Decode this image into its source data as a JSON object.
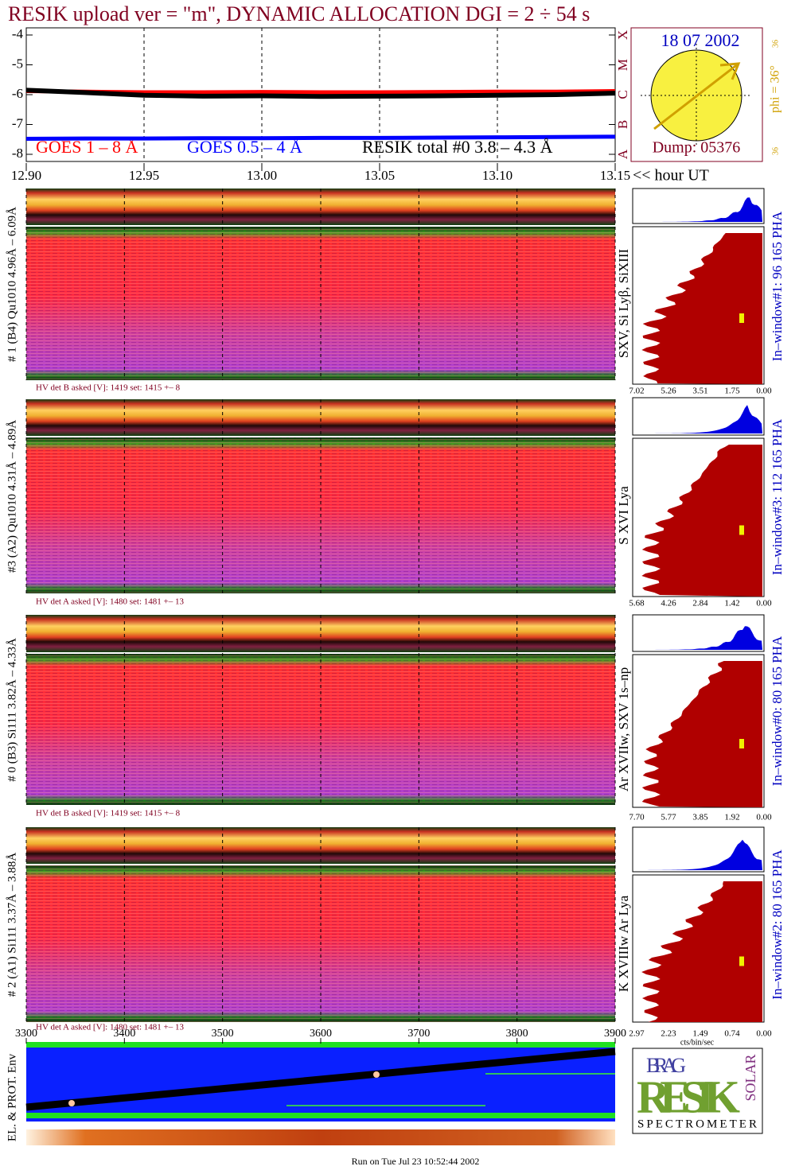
{
  "title": "RESIK upload ver = \"m\", DYNAMIC ALLOCATION  DGI =   2 ÷  54 s",
  "chart_data": {
    "type": "line",
    "xlim": [
      12.9,
      13.15
    ],
    "xticks": [
      {
        "value": 12.9,
        "label": "12.90"
      },
      12.95,
      {
        "value": 13,
        "label": "13.00"
      },
      13.05,
      {
        "value": 13.1,
        "label": "13.10"
      },
      13.15
    ],
    "xlabel": "<< hour UT",
    "ylim": [
      -8.24,
      -3.76
    ],
    "yticks": [
      -4,
      -5,
      -6,
      -7,
      -8
    ],
    "class_labels": [
      "X",
      "M",
      "C",
      "B",
      "A"
    ],
    "grid": true,
    "x": [
      12.9,
      12.925,
      12.95,
      12.975,
      13.0,
      13.025,
      13.05,
      13.075,
      13.1,
      13.125,
      13.15
    ],
    "series": [
      {
        "name": "GOES 1 – 8 Å",
        "color": "#ff0000",
        "values": [
          -5.88,
          -5.9,
          -5.92,
          -5.92,
          -5.91,
          -5.92,
          -5.92,
          -5.91,
          -5.9,
          -5.9,
          -5.88
        ]
      },
      {
        "name": "GOES 0.5 – 4 Å",
        "color": "#0000ff",
        "values": [
          -7.48,
          -7.47,
          -7.47,
          -7.46,
          -7.46,
          -7.45,
          -7.45,
          -7.44,
          -7.43,
          -7.42,
          -7.41
        ]
      },
      {
        "name": "RESIK total #0  3.8 – 4.3 Å",
        "color": "#000000",
        "values": [
          -5.85,
          -5.93,
          -6.02,
          -6.05,
          -6.04,
          -6.06,
          -6.05,
          -6.04,
          -6.02,
          -6.0,
          -5.95
        ]
      }
    ]
  },
  "sun_box": {
    "date": "18 07 2002",
    "phi_label": "phi = 36°",
    "phi_ticks": [
      "36",
      "36"
    ],
    "dump": "Dump: 05376"
  },
  "panels": [
    {
      "label": "# 1 (B4) Qu1010 4.96Å – 6.09Å",
      "hv": "HV det B asked [V]:  1419 set:  1415 +–   8",
      "lines": "SXV, Si Lyβ, SiXIII",
      "window": "In–window#1:   96 165  PHA",
      "hist_ticks": [
        "7.02",
        "5.26",
        "3.51",
        "1.75",
        "0.00"
      ]
    },
    {
      "label": "#3 (A2) Qu1010  4.31Å – 4.89Å",
      "hv": "HV det A asked [V]:  1480 set:  1481 +–   13",
      "lines": "S XVI Lya",
      "window": "In–window#3:  112 165  PHA",
      "hist_ticks": [
        "5.68",
        "4.26",
        "2.84",
        "1.42",
        "0.00"
      ]
    },
    {
      "label": "# 0 (B3) Si111  3.82Å – 4.33Å",
      "hv": "HV det B asked [V]:  1419 set:  1415 +–   8",
      "lines": "Ar XVIIw,  SXV 1s–np",
      "window": "In–window#0:   80 165  PHA",
      "hist_ticks": [
        "7.70",
        "5.77",
        "3.85",
        "1.92",
        "0.00"
      ]
    },
    {
      "label": "# 2 (A1) Si111  3.37Å – 3.88Å",
      "hv": "HV det A asked [V]:  1480 set:  1481 +–   13",
      "lines": "K XVIIIw  Ar Lya",
      "window": "In–window#2:   80 165  PHA",
      "hist_ticks": [
        "2.97",
        "2.23",
        "1.49",
        "0.74",
        "0.00"
      ]
    }
  ],
  "hist_unit": "cts/bin/sec",
  "bottom_panel": {
    "ylabel": "EL. & PROT. Env",
    "xlim": [
      3300,
      3900
    ],
    "xticks": [
      3300,
      3400,
      3500,
      3600,
      3700,
      3800,
      3900
    ]
  },
  "logo": {
    "top": "BRAG",
    "main": "RESIK",
    "side": "SOLAR",
    "bottom": "SPECTROMETER"
  },
  "footer": "Run on Tue Jul 23 10:52:44 2002"
}
